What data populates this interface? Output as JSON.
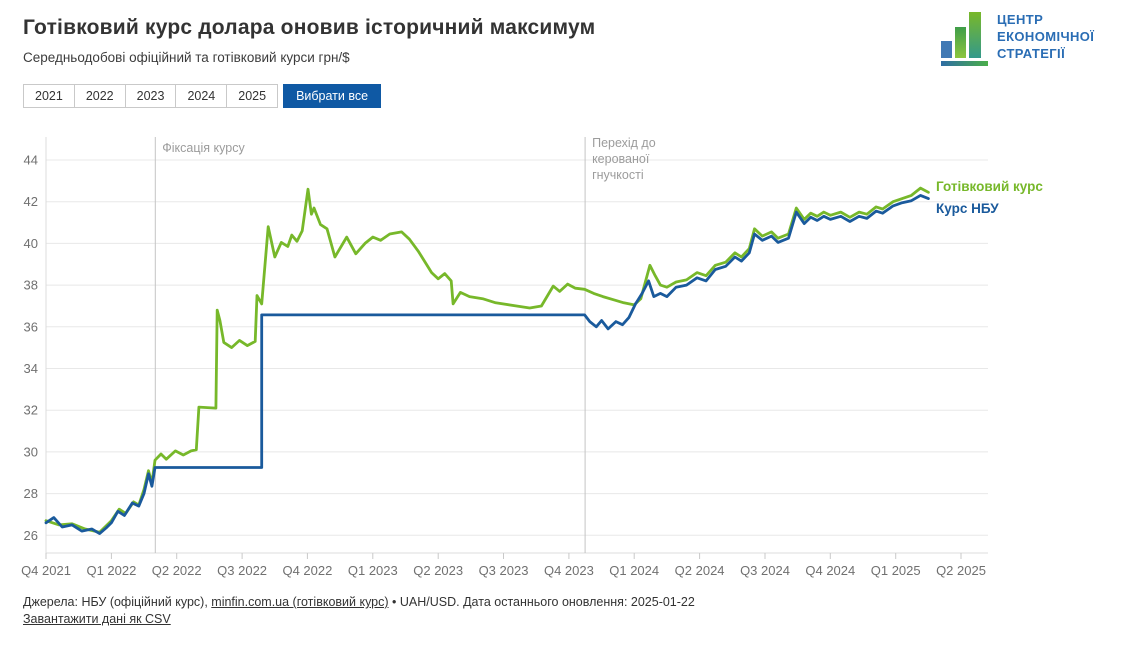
{
  "header": {
    "title": "Готівковий курс долара оновив історичний максимум",
    "subtitle": "Середньодобові офіційний та готівковий курси грн/$"
  },
  "logo": {
    "line1": "ЦЕНТР",
    "line2": "ЕКОНОМІЧНОЇ",
    "line3": "СТРАТЕГІЇ"
  },
  "filters": {
    "years": [
      "2021",
      "2022",
      "2023",
      "2024",
      "2025"
    ],
    "select_all_label": "Вибрати все"
  },
  "colors": {
    "cash_line": "#77b82a",
    "nbu_line": "#1a5a9c",
    "active_button": "#0f59a4",
    "grid": "#e8e8e8",
    "axis": "#dcdcdc",
    "tick_mark": "#c9c9c9",
    "tick_text": "#707070",
    "annotation_line": "#c4c4c4",
    "annotation_text": "#9c9c9c"
  },
  "chart_data": {
    "type": "line",
    "title": "Готівковий курс долара оновив історичний максимум",
    "subtitle": "Середньодобові офіційний та готівковий курси грн/$",
    "xlabel": "",
    "ylabel": "грн/$",
    "x_unit": "decimal_year",
    "ylim": [
      25,
      45
    ],
    "grid": "horizontal",
    "legend_position": "right-end",
    "yticks": [
      26,
      28,
      30,
      32,
      34,
      36,
      38,
      40,
      42,
      44
    ],
    "xticks": [
      {
        "label": "Q4 2021",
        "x": 2021.75
      },
      {
        "label": "Q1 2022",
        "x": 2022.0
      },
      {
        "label": "Q2 2022",
        "x": 2022.25
      },
      {
        "label": "Q3 2022",
        "x": 2022.5
      },
      {
        "label": "Q4 2022",
        "x": 2022.75
      },
      {
        "label": "Q1 2023",
        "x": 2023.0
      },
      {
        "label": "Q2 2023",
        "x": 2023.25
      },
      {
        "label": "Q3 2023",
        "x": 2023.5
      },
      {
        "label": "Q4 2023",
        "x": 2023.75
      },
      {
        "label": "Q1 2024",
        "x": 2024.0
      },
      {
        "label": "Q2 2024",
        "x": 2024.25
      },
      {
        "label": "Q3 2024",
        "x": 2024.5
      },
      {
        "label": "Q4 2024",
        "x": 2024.75
      },
      {
        "label": "Q1 2025",
        "x": 2025.0
      },
      {
        "label": "Q2 2025",
        "x": 2025.25
      }
    ],
    "annotations": [
      {
        "label": "Фіксація курсу",
        "x_year": 2022.168
      },
      {
        "label": "Перехід до керованої гнучкості",
        "x_year": 2023.812
      }
    ],
    "series": [
      {
        "id": "cash",
        "name": "Готівковий курс",
        "color": "#77b82a",
        "points": [
          [
            2021.75,
            26.7
          ],
          [
            2021.8,
            26.5
          ],
          [
            2021.85,
            26.55
          ],
          [
            2021.9,
            26.3
          ],
          [
            2021.955,
            26.15
          ],
          [
            2022.0,
            26.7
          ],
          [
            2022.03,
            27.25
          ],
          [
            2022.055,
            27.05
          ],
          [
            2022.085,
            27.6
          ],
          [
            2022.105,
            27.45
          ],
          [
            2022.125,
            28.2
          ],
          [
            2022.142,
            29.1
          ],
          [
            2022.155,
            28.5
          ],
          [
            2022.167,
            29.6
          ],
          [
            2022.19,
            29.9
          ],
          [
            2022.21,
            29.65
          ],
          [
            2022.245,
            30.05
          ],
          [
            2022.275,
            29.85
          ],
          [
            2022.305,
            30.05
          ],
          [
            2022.325,
            30.1
          ],
          [
            2022.335,
            32.15
          ],
          [
            2022.4,
            32.1
          ],
          [
            2022.405,
            36.8
          ],
          [
            2022.415,
            36.3
          ],
          [
            2022.43,
            35.25
          ],
          [
            2022.46,
            35.0
          ],
          [
            2022.49,
            35.35
          ],
          [
            2022.52,
            35.1
          ],
          [
            2022.55,
            35.3
          ],
          [
            2022.557,
            37.5
          ],
          [
            2022.575,
            37.1
          ],
          [
            2022.6,
            40.8
          ],
          [
            2022.625,
            39.35
          ],
          [
            2022.65,
            40.05
          ],
          [
            2022.675,
            39.85
          ],
          [
            2022.69,
            40.4
          ],
          [
            2022.71,
            40.1
          ],
          [
            2022.73,
            40.6
          ],
          [
            2022.752,
            42.6
          ],
          [
            2022.765,
            41.4
          ],
          [
            2022.775,
            41.7
          ],
          [
            2022.8,
            40.9
          ],
          [
            2022.825,
            40.7
          ],
          [
            2022.855,
            39.35
          ],
          [
            2022.9,
            40.3
          ],
          [
            2022.935,
            39.5
          ],
          [
            2022.97,
            40.0
          ],
          [
            2023.0,
            40.3
          ],
          [
            2023.03,
            40.15
          ],
          [
            2023.065,
            40.45
          ],
          [
            2023.11,
            40.55
          ],
          [
            2023.14,
            40.2
          ],
          [
            2023.175,
            39.6
          ],
          [
            2023.225,
            38.6
          ],
          [
            2023.25,
            38.3
          ],
          [
            2023.275,
            38.55
          ],
          [
            2023.3,
            38.2
          ],
          [
            2023.307,
            37.1
          ],
          [
            2023.335,
            37.65
          ],
          [
            2023.37,
            37.45
          ],
          [
            2023.42,
            37.35
          ],
          [
            2023.47,
            37.15
          ],
          [
            2023.55,
            37.0
          ],
          [
            2023.6,
            36.9
          ],
          [
            2023.645,
            37.0
          ],
          [
            2023.69,
            37.95
          ],
          [
            2023.715,
            37.7
          ],
          [
            2023.745,
            38.05
          ],
          [
            2023.775,
            37.85
          ],
          [
            2023.81,
            37.8
          ],
          [
            2023.845,
            37.6
          ],
          [
            2023.88,
            37.45
          ],
          [
            2023.92,
            37.3
          ],
          [
            2023.96,
            37.15
          ],
          [
            2024.0,
            37.05
          ],
          [
            2024.025,
            37.35
          ],
          [
            2024.06,
            38.95
          ],
          [
            2024.08,
            38.45
          ],
          [
            2024.1,
            38.0
          ],
          [
            2024.125,
            37.9
          ],
          [
            2024.16,
            38.15
          ],
          [
            2024.2,
            38.25
          ],
          [
            2024.24,
            38.6
          ],
          [
            2024.275,
            38.45
          ],
          [
            2024.31,
            38.95
          ],
          [
            2024.35,
            39.1
          ],
          [
            2024.385,
            39.55
          ],
          [
            2024.41,
            39.35
          ],
          [
            2024.44,
            39.75
          ],
          [
            2024.46,
            40.7
          ],
          [
            2024.49,
            40.35
          ],
          [
            2024.525,
            40.55
          ],
          [
            2024.55,
            40.25
          ],
          [
            2024.59,
            40.45
          ],
          [
            2024.62,
            41.7
          ],
          [
            2024.65,
            41.15
          ],
          [
            2024.675,
            41.45
          ],
          [
            2024.7,
            41.3
          ],
          [
            2024.725,
            41.5
          ],
          [
            2024.75,
            41.35
          ],
          [
            2024.79,
            41.5
          ],
          [
            2024.825,
            41.25
          ],
          [
            2024.86,
            41.5
          ],
          [
            2024.89,
            41.4
          ],
          [
            2024.925,
            41.75
          ],
          [
            2024.95,
            41.65
          ],
          [
            2024.99,
            42.0
          ],
          [
            2025.025,
            42.15
          ],
          [
            2025.06,
            42.3
          ],
          [
            2025.095,
            42.65
          ],
          [
            2025.125,
            42.45
          ]
        ]
      },
      {
        "id": "nbu",
        "name": "Курс НБУ",
        "color": "#1a5a9c",
        "points": [
          [
            2021.75,
            26.6
          ],
          [
            2021.78,
            26.85
          ],
          [
            2021.812,
            26.4
          ],
          [
            2021.85,
            26.5
          ],
          [
            2021.887,
            26.2
          ],
          [
            2021.925,
            26.3
          ],
          [
            2021.955,
            26.08
          ],
          [
            2021.98,
            26.35
          ],
          [
            2022.0,
            26.6
          ],
          [
            2022.025,
            27.15
          ],
          [
            2022.05,
            26.95
          ],
          [
            2022.08,
            27.55
          ],
          [
            2022.105,
            27.4
          ],
          [
            2022.125,
            28.0
          ],
          [
            2022.142,
            28.95
          ],
          [
            2022.155,
            28.35
          ],
          [
            2022.167,
            29.25
          ],
          [
            2022.575,
            29.25
          ],
          [
            2022.575,
            36.57
          ],
          [
            2023.81,
            36.57
          ],
          [
            2023.83,
            36.25
          ],
          [
            2023.855,
            36.0
          ],
          [
            2023.875,
            36.3
          ],
          [
            2023.9,
            35.9
          ],
          [
            2023.93,
            36.25
          ],
          [
            2023.955,
            36.1
          ],
          [
            2023.98,
            36.45
          ],
          [
            2024.005,
            37.1
          ],
          [
            2024.03,
            37.6
          ],
          [
            2024.055,
            38.2
          ],
          [
            2024.075,
            37.45
          ],
          [
            2024.1,
            37.6
          ],
          [
            2024.125,
            37.45
          ],
          [
            2024.16,
            37.9
          ],
          [
            2024.2,
            38.0
          ],
          [
            2024.24,
            38.35
          ],
          [
            2024.275,
            38.2
          ],
          [
            2024.31,
            38.75
          ],
          [
            2024.35,
            38.9
          ],
          [
            2024.385,
            39.35
          ],
          [
            2024.41,
            39.15
          ],
          [
            2024.44,
            39.55
          ],
          [
            2024.46,
            40.45
          ],
          [
            2024.49,
            40.15
          ],
          [
            2024.525,
            40.35
          ],
          [
            2024.55,
            40.05
          ],
          [
            2024.59,
            40.25
          ],
          [
            2024.62,
            41.5
          ],
          [
            2024.65,
            40.95
          ],
          [
            2024.675,
            41.25
          ],
          [
            2024.7,
            41.1
          ],
          [
            2024.725,
            41.3
          ],
          [
            2024.75,
            41.15
          ],
          [
            2024.79,
            41.3
          ],
          [
            2024.825,
            41.05
          ],
          [
            2024.86,
            41.3
          ],
          [
            2024.89,
            41.2
          ],
          [
            2024.925,
            41.55
          ],
          [
            2024.95,
            41.45
          ],
          [
            2024.99,
            41.8
          ],
          [
            2025.025,
            41.95
          ],
          [
            2025.06,
            42.05
          ],
          [
            2025.095,
            42.3
          ],
          [
            2025.125,
            42.15
          ]
        ]
      }
    ]
  },
  "footer": {
    "sources_prefix": "Джерела: НБУ (офіційний курс), ",
    "minfin_link": "minfin.com.ua (готівковий курс)",
    "sources_suffix": " • UAH/USD. Дата останнього оновлення: 2025-01-22",
    "download_link": "Завантажити дані як CSV"
  }
}
